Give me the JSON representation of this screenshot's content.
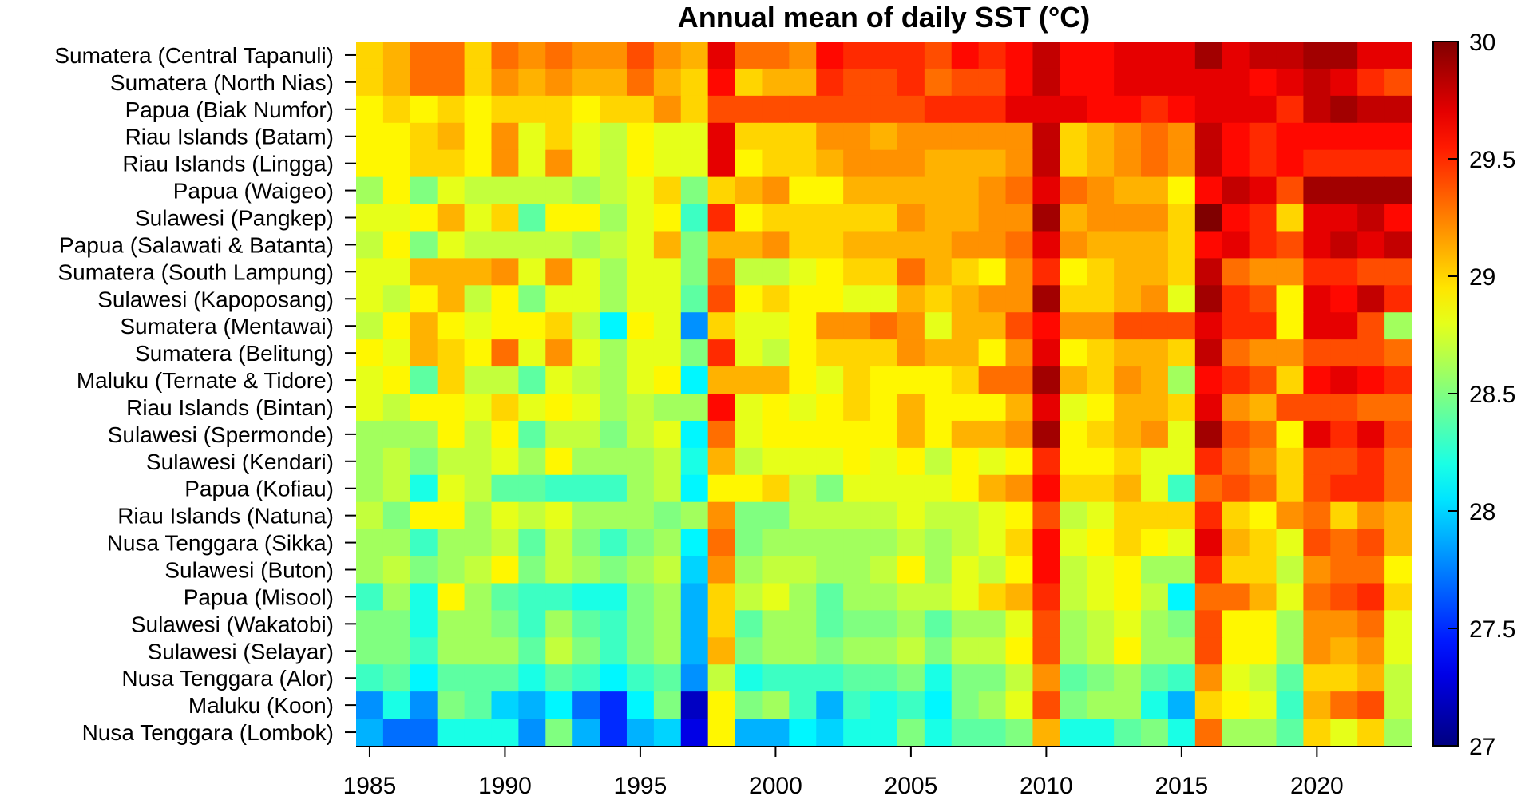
{
  "chart_data": {
    "type": "heatmap",
    "title": "Annual mean of daily SST (°C)",
    "colormap": "jet",
    "colorbar": {
      "min": 27,
      "max": 30,
      "ticks": [
        27,
        27.5,
        28,
        28.5,
        29,
        29.5,
        30
      ]
    },
    "x_ticks": [
      1985,
      1990,
      1995,
      2000,
      2005,
      2010,
      2015,
      2020
    ],
    "x": [
      1985,
      1986,
      1987,
      1988,
      1989,
      1990,
      1991,
      1992,
      1993,
      1994,
      1995,
      1996,
      1997,
      1998,
      1999,
      2000,
      2001,
      2002,
      2003,
      2004,
      2005,
      2006,
      2007,
      2008,
      2009,
      2010,
      2011,
      2012,
      2013,
      2014,
      2015,
      2016,
      2017,
      2018,
      2019,
      2020,
      2021,
      2022,
      2023
    ],
    "rows": [
      "Sumatera (Central Tapanuli)",
      "Sumatera (North Nias)",
      "Papua (Biak Numfor)",
      "Riau Islands (Batam)",
      "Riau Islands (Lingga)",
      "Papua (Waigeo)",
      "Sulawesi (Pangkep)",
      "Papua (Salawati & Batanta)",
      "Sumatera (South Lampung)",
      "Sulawesi (Kapoposang)",
      "Sumatera (Mentawai)",
      "Sumatera (Belitung)",
      "Maluku (Ternate & Tidore)",
      "Riau Islands (Bintan)",
      "Sulawesi (Spermonde)",
      "Sulawesi (Kendari)",
      "Papua (Kofiau)",
      "Riau Islands (Natuna)",
      "Nusa Tenggara (Sikka)",
      "Sulawesi (Buton)",
      "Papua (Misool)",
      "Sulawesi (Wakatobi)",
      "Sulawesi (Selayar)",
      "Nusa Tenggara (Alor)",
      "Maluku (Koon)",
      "Nusa Tenggara (Lombok)"
    ],
    "values": [
      [
        29.0,
        29.1,
        29.3,
        29.3,
        29.0,
        29.3,
        29.2,
        29.3,
        29.2,
        29.2,
        29.4,
        29.2,
        29.1,
        29.7,
        29.3,
        29.3,
        29.2,
        29.6,
        29.5,
        29.5,
        29.5,
        29.4,
        29.6,
        29.5,
        29.6,
        29.8,
        29.6,
        29.6,
        29.7,
        29.7,
        29.7,
        29.9,
        29.7,
        29.8,
        29.8,
        29.9,
        29.9,
        29.7,
        29.7
      ],
      [
        29.0,
        29.1,
        29.3,
        29.3,
        29.0,
        29.2,
        29.1,
        29.2,
        29.1,
        29.1,
        29.3,
        29.1,
        29.0,
        29.6,
        29.0,
        29.1,
        29.1,
        29.5,
        29.4,
        29.4,
        29.5,
        29.3,
        29.4,
        29.4,
        29.6,
        29.8,
        29.6,
        29.6,
        29.7,
        29.7,
        29.7,
        29.7,
        29.7,
        29.6,
        29.7,
        29.8,
        29.7,
        29.5,
        29.4
      ],
      [
        28.9,
        29.0,
        28.9,
        29.0,
        28.9,
        29.0,
        29.0,
        29.0,
        28.9,
        29.0,
        29.0,
        29.2,
        29.0,
        29.4,
        29.4,
        29.4,
        29.4,
        29.4,
        29.4,
        29.4,
        29.4,
        29.5,
        29.5,
        29.5,
        29.7,
        29.7,
        29.7,
        29.6,
        29.6,
        29.5,
        29.6,
        29.7,
        29.7,
        29.7,
        29.5,
        29.8,
        29.9,
        29.8,
        29.8
      ],
      [
        28.9,
        28.9,
        29.0,
        29.1,
        28.9,
        29.2,
        28.8,
        29.0,
        28.8,
        28.7,
        28.9,
        28.8,
        28.8,
        29.7,
        29.0,
        29.0,
        29.0,
        29.2,
        29.2,
        29.1,
        29.2,
        29.2,
        29.2,
        29.2,
        29.2,
        29.8,
        29.0,
        29.1,
        29.2,
        29.3,
        29.2,
        29.8,
        29.6,
        29.5,
        29.6,
        29.6,
        29.6,
        29.6,
        29.6
      ],
      [
        28.9,
        28.9,
        29.0,
        29.0,
        28.9,
        29.2,
        28.8,
        29.2,
        28.8,
        28.7,
        28.9,
        28.8,
        28.8,
        29.7,
        28.9,
        29.0,
        29.0,
        29.1,
        29.2,
        29.2,
        29.2,
        29.1,
        29.1,
        29.1,
        29.2,
        29.8,
        29.0,
        29.1,
        29.2,
        29.3,
        29.2,
        29.8,
        29.6,
        29.5,
        29.6,
        29.5,
        29.5,
        29.5,
        29.5
      ],
      [
        28.6,
        28.9,
        28.5,
        28.8,
        28.7,
        28.7,
        28.7,
        28.7,
        28.6,
        28.7,
        28.8,
        29.0,
        28.5,
        29.0,
        29.1,
        29.2,
        28.9,
        28.9,
        29.1,
        29.1,
        29.1,
        29.1,
        29.1,
        29.2,
        29.3,
        29.7,
        29.3,
        29.2,
        29.1,
        29.1,
        28.9,
        29.6,
        29.8,
        29.7,
        29.4,
        29.9,
        29.9,
        29.9,
        29.9
      ],
      [
        28.8,
        28.8,
        28.9,
        29.1,
        28.8,
        29.0,
        28.4,
        28.9,
        28.9,
        28.6,
        28.8,
        28.9,
        28.3,
        29.5,
        28.9,
        29.0,
        29.0,
        29.0,
        29.0,
        29.0,
        29.2,
        29.1,
        29.1,
        29.2,
        29.2,
        29.9,
        29.1,
        29.2,
        29.2,
        29.2,
        29.0,
        30.0,
        29.6,
        29.5,
        29.0,
        29.7,
        29.7,
        29.8,
        29.6
      ],
      [
        28.7,
        28.9,
        28.5,
        28.8,
        28.7,
        28.7,
        28.7,
        28.7,
        28.6,
        28.7,
        28.8,
        29.1,
        28.5,
        29.1,
        29.1,
        29.2,
        29.0,
        29.0,
        29.1,
        29.1,
        29.1,
        29.1,
        29.2,
        29.2,
        29.3,
        29.7,
        29.2,
        29.1,
        29.1,
        29.1,
        29.0,
        29.6,
        29.7,
        29.5,
        29.4,
        29.7,
        29.8,
        29.7,
        29.8
      ],
      [
        28.8,
        28.8,
        29.1,
        29.1,
        29.1,
        29.2,
        28.8,
        29.2,
        28.8,
        28.6,
        28.8,
        28.8,
        28.5,
        29.3,
        28.7,
        28.7,
        28.8,
        28.9,
        29.0,
        29.0,
        29.3,
        29.1,
        29.0,
        28.9,
        29.2,
        29.5,
        28.9,
        29.0,
        29.1,
        29.1,
        29.0,
        29.8,
        29.3,
        29.2,
        29.2,
        29.5,
        29.5,
        29.4,
        29.4
      ],
      [
        28.8,
        28.7,
        28.9,
        29.1,
        28.7,
        28.9,
        28.5,
        28.8,
        28.8,
        28.6,
        28.8,
        28.8,
        28.4,
        29.4,
        28.9,
        29.0,
        28.9,
        28.9,
        28.8,
        28.8,
        29.1,
        29.0,
        29.1,
        29.2,
        29.2,
        29.9,
        29.0,
        29.0,
        29.1,
        29.2,
        28.8,
        29.9,
        29.5,
        29.4,
        28.9,
        29.7,
        29.6,
        29.8,
        29.5
      ],
      [
        28.7,
        28.9,
        29.1,
        28.9,
        28.8,
        28.9,
        28.9,
        29.0,
        28.7,
        28.1,
        28.9,
        28.8,
        27.8,
        29.0,
        28.8,
        28.8,
        28.9,
        29.2,
        29.2,
        29.3,
        29.2,
        28.8,
        29.1,
        29.1,
        29.4,
        29.6,
        29.2,
        29.2,
        29.4,
        29.4,
        29.4,
        29.7,
        29.5,
        29.5,
        28.9,
        29.7,
        29.7,
        29.4,
        28.6
      ],
      [
        28.9,
        28.8,
        29.1,
        29.0,
        28.9,
        29.3,
        28.8,
        29.2,
        28.8,
        28.6,
        28.8,
        28.8,
        28.5,
        29.5,
        28.8,
        28.7,
        28.9,
        29.0,
        29.0,
        29.0,
        29.2,
        29.1,
        29.1,
        28.9,
        29.2,
        29.7,
        28.9,
        29.0,
        29.1,
        29.1,
        29.0,
        29.8,
        29.3,
        29.2,
        29.2,
        29.4,
        29.4,
        29.4,
        29.3
      ],
      [
        28.8,
        28.9,
        28.4,
        29.0,
        28.7,
        28.7,
        28.4,
        28.8,
        28.7,
        28.6,
        28.8,
        28.9,
        28.1,
        29.1,
        29.1,
        29.1,
        28.9,
        28.8,
        29.0,
        28.9,
        28.9,
        28.9,
        29.0,
        29.3,
        29.3,
        29.9,
        29.1,
        29.0,
        29.2,
        29.1,
        28.6,
        29.6,
        29.5,
        29.4,
        29.0,
        29.6,
        29.7,
        29.6,
        29.5
      ],
      [
        28.8,
        28.7,
        28.9,
        28.9,
        28.8,
        29.0,
        28.8,
        28.9,
        28.8,
        28.6,
        28.7,
        28.6,
        28.6,
        29.6,
        28.8,
        28.9,
        28.8,
        28.9,
        29.0,
        28.9,
        29.1,
        28.9,
        28.9,
        28.9,
        29.1,
        29.7,
        28.8,
        28.9,
        29.1,
        29.1,
        29.0,
        29.7,
        29.2,
        29.1,
        29.4,
        29.4,
        29.4,
        29.3,
        29.3
      ],
      [
        28.6,
        28.6,
        28.6,
        28.9,
        28.7,
        28.9,
        28.4,
        28.7,
        28.7,
        28.5,
        28.7,
        28.8,
        28.1,
        29.3,
        28.8,
        28.9,
        28.9,
        28.9,
        28.9,
        28.9,
        29.1,
        28.9,
        29.1,
        29.1,
        29.2,
        29.9,
        28.9,
        29.0,
        29.1,
        29.2,
        28.8,
        29.9,
        29.4,
        29.3,
        28.9,
        29.7,
        29.5,
        29.7,
        29.4
      ],
      [
        28.6,
        28.7,
        28.5,
        28.7,
        28.7,
        28.8,
        28.6,
        28.9,
        28.6,
        28.6,
        28.6,
        28.7,
        28.2,
        29.1,
        28.7,
        28.8,
        28.8,
        28.8,
        28.9,
        28.8,
        28.9,
        28.7,
        28.9,
        28.8,
        28.9,
        29.5,
        28.9,
        28.9,
        29.0,
        28.8,
        28.8,
        29.5,
        29.3,
        29.2,
        29.0,
        29.4,
        29.4,
        29.5,
        29.3
      ],
      [
        28.6,
        28.7,
        28.2,
        28.8,
        28.7,
        28.4,
        28.4,
        28.3,
        28.3,
        28.3,
        28.6,
        28.7,
        28.1,
        28.9,
        28.9,
        29.0,
        28.7,
        28.5,
        28.8,
        28.8,
        28.8,
        28.8,
        28.9,
        29.1,
        29.2,
        29.6,
        29.0,
        29.0,
        29.1,
        28.8,
        28.3,
        29.3,
        29.4,
        29.3,
        29.0,
        29.4,
        29.5,
        29.5,
        29.3
      ],
      [
        28.7,
        28.5,
        28.9,
        28.9,
        28.6,
        28.8,
        28.7,
        28.8,
        28.6,
        28.6,
        28.6,
        28.5,
        28.6,
        29.2,
        28.5,
        28.5,
        28.7,
        28.7,
        28.7,
        28.7,
        28.8,
        28.7,
        28.7,
        28.8,
        28.9,
        29.4,
        28.7,
        28.8,
        29.0,
        29.0,
        29.0,
        29.5,
        29.0,
        28.9,
        29.2,
        29.3,
        29.0,
        29.2,
        29.1
      ],
      [
        28.6,
        28.6,
        28.3,
        28.6,
        28.6,
        28.7,
        28.4,
        28.7,
        28.5,
        28.3,
        28.5,
        28.6,
        28.1,
        29.3,
        28.5,
        28.6,
        28.6,
        28.6,
        28.6,
        28.6,
        28.7,
        28.6,
        28.7,
        28.8,
        29.0,
        29.6,
        28.8,
        28.9,
        29.0,
        28.9,
        28.8,
        29.7,
        29.1,
        29.0,
        28.8,
        29.4,
        29.3,
        29.4,
        29.1
      ],
      [
        28.6,
        28.7,
        28.5,
        28.6,
        28.7,
        28.9,
        28.5,
        28.7,
        28.6,
        28.5,
        28.6,
        28.7,
        28.0,
        29.2,
        28.6,
        28.7,
        28.7,
        28.6,
        28.6,
        28.7,
        28.9,
        28.6,
        28.8,
        28.7,
        28.9,
        29.6,
        28.7,
        28.8,
        28.9,
        28.6,
        28.6,
        29.5,
        29.0,
        29.0,
        28.7,
        29.2,
        29.3,
        29.3,
        28.9
      ],
      [
        28.3,
        28.6,
        28.2,
        28.9,
        28.6,
        28.4,
        28.3,
        28.3,
        28.2,
        28.2,
        28.5,
        28.6,
        27.9,
        29.0,
        28.7,
        28.8,
        28.6,
        28.4,
        28.6,
        28.6,
        28.7,
        28.7,
        28.8,
        29.0,
        29.1,
        29.5,
        28.7,
        28.8,
        28.9,
        28.7,
        28.1,
        29.3,
        29.3,
        29.1,
        28.8,
        29.3,
        29.4,
        29.5,
        29.0
      ],
      [
        28.5,
        28.5,
        28.2,
        28.6,
        28.6,
        28.5,
        28.3,
        28.6,
        28.4,
        28.3,
        28.5,
        28.6,
        27.9,
        29.0,
        28.4,
        28.6,
        28.6,
        28.4,
        28.5,
        28.5,
        28.6,
        28.4,
        28.6,
        28.6,
        28.8,
        29.4,
        28.6,
        28.7,
        28.8,
        28.6,
        28.5,
        29.4,
        28.9,
        28.9,
        28.6,
        29.2,
        29.2,
        29.3,
        28.8
      ],
      [
        28.5,
        28.5,
        28.3,
        28.6,
        28.6,
        28.6,
        28.4,
        28.7,
        28.5,
        28.3,
        28.5,
        28.6,
        27.9,
        29.1,
        28.5,
        28.6,
        28.6,
        28.5,
        28.6,
        28.6,
        28.7,
        28.5,
        28.7,
        28.7,
        28.9,
        29.4,
        28.6,
        28.7,
        28.9,
        28.6,
        28.6,
        29.4,
        28.9,
        28.9,
        28.6,
        29.2,
        29.1,
        29.2,
        28.8
      ],
      [
        28.3,
        28.4,
        28.1,
        28.4,
        28.4,
        28.4,
        28.2,
        28.4,
        28.3,
        28.1,
        28.3,
        28.4,
        27.8,
        28.7,
        28.2,
        28.3,
        28.3,
        28.3,
        28.4,
        28.4,
        28.5,
        28.2,
        28.5,
        28.5,
        28.7,
        29.2,
        28.4,
        28.5,
        28.6,
        28.4,
        28.3,
        29.2,
        28.8,
        28.7,
        28.4,
        29.0,
        29.0,
        29.1,
        28.7
      ],
      [
        27.8,
        28.2,
        27.8,
        28.5,
        28.4,
        28.0,
        27.9,
        28.1,
        27.7,
        27.5,
        28.1,
        28.5,
        27.2,
        28.9,
        28.5,
        28.6,
        28.3,
        27.9,
        28.3,
        28.2,
        28.3,
        28.1,
        28.5,
        28.6,
        28.8,
        29.4,
        28.5,
        28.6,
        28.6,
        28.2,
        27.9,
        29.0,
        28.9,
        28.8,
        28.3,
        29.1,
        29.3,
        29.4,
        28.7
      ],
      [
        27.9,
        27.7,
        27.7,
        28.2,
        28.2,
        28.2,
        27.8,
        28.5,
        27.9,
        27.5,
        27.9,
        28.0,
        27.3,
        28.9,
        27.9,
        27.9,
        28.1,
        28.0,
        28.2,
        28.2,
        28.5,
        28.2,
        28.4,
        28.4,
        28.5,
        29.1,
        28.2,
        28.2,
        28.4,
        28.5,
        28.2,
        29.3,
        28.6,
        28.6,
        28.4,
        29.0,
        28.8,
        29.0,
        28.6
      ]
    ]
  }
}
